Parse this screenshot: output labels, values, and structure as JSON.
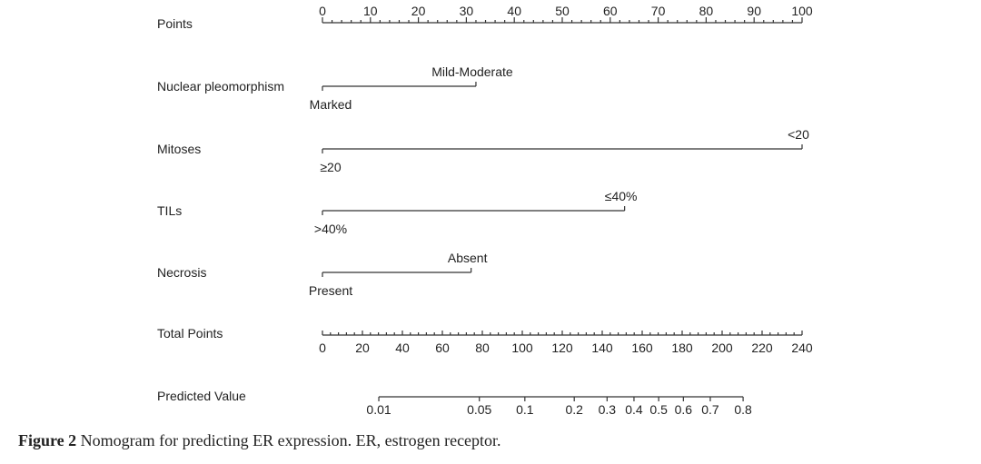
{
  "chart_data": {
    "type": "nomogram",
    "points_axis": {
      "label": "Points",
      "range": [
        0,
        100
      ],
      "major_step": 10,
      "minor_step": 2,
      "tick_labels": [
        "0",
        "10",
        "20",
        "30",
        "40",
        "50",
        "60",
        "70",
        "80",
        "90",
        "100"
      ]
    },
    "variables": [
      {
        "name": "Nuclear pleomorphism",
        "levels": [
          {
            "label": "Marked",
            "points": 0
          },
          {
            "label": "Mild-Moderate",
            "points": 32
          }
        ]
      },
      {
        "name": "Mitoses",
        "levels": [
          {
            "label": "≥20",
            "points": 0
          },
          {
            "label": "<20",
            "points": 100
          }
        ]
      },
      {
        "name": "TILs",
        "levels": [
          {
            "label": ">40%",
            "points": 0
          },
          {
            "label": "≤40%",
            "points": 63
          }
        ]
      },
      {
        "name": "Necrosis",
        "levels": [
          {
            "label": "Present",
            "points": 0
          },
          {
            "label": "Absent",
            "points": 31
          }
        ]
      }
    ],
    "total_points_axis": {
      "label": "Total Points",
      "range": [
        0,
        240
      ],
      "major_step": 20,
      "minor_step": 4,
      "tick_labels": [
        "0",
        "20",
        "40",
        "60",
        "80",
        "100",
        "120",
        "140",
        "160",
        "180",
        "200",
        "220",
        "240"
      ]
    },
    "predicted_value_axis": {
      "label": "Predicted Value",
      "values": [
        0.01,
        0.05,
        0.1,
        0.2,
        0.3,
        0.4,
        0.5,
        0.6,
        0.7,
        0.8
      ],
      "tick_labels": [
        "0.01",
        "0.05",
        "0.1",
        "0.2",
        "0.3",
        "0.4",
        "0.5",
        "0.6",
        "0.7",
        "0.8"
      ],
      "total_points_at_0.01": 28.2,
      "total_points_at_0.8": 210.5
    }
  },
  "caption": {
    "label": "Figure 2",
    "text": " Nomogram for predicting ER expression. ER, estrogen receptor."
  }
}
